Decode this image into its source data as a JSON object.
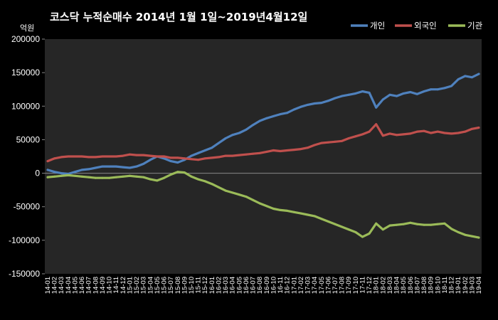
{
  "chart_data": {
    "type": "line",
    "title": "코스닥 누적순매수 2014년 1월 1일~2019년4월12일",
    "unit_label": "억원",
    "ylim": [
      -150000,
      200000
    ],
    "y_ticks": [
      "200000",
      "150000",
      "100000",
      "50000",
      "0",
      "-50000",
      "-100000",
      "-150000"
    ],
    "grid": false,
    "legend_position": "top-right",
    "categories": [
      "14-01",
      "14-02",
      "14-03",
      "14-04",
      "14-05",
      "14-06",
      "14-07",
      "14-08",
      "14-09",
      "14-10",
      "14-11",
      "14-12",
      "15-01",
      "15-02",
      "15-03",
      "15-04",
      "15-05",
      "15-06",
      "15-07",
      "15-08",
      "15-09",
      "15-10",
      "15-11",
      "15-12",
      "16-01",
      "16-02",
      "16-03",
      "16-04",
      "16-05",
      "16-06",
      "16-07",
      "16-08",
      "16-09",
      "16-10",
      "16-11",
      "16-12",
      "17-01",
      "17-02",
      "17-03",
      "17-04",
      "17-05",
      "17-06",
      "17-07",
      "17-08",
      "17-09",
      "17-10",
      "17-11",
      "17-12",
      "18-01",
      "18-02",
      "18-03",
      "18-04",
      "18-05",
      "18-06",
      "18-07",
      "18-08",
      "18-09",
      "18-10",
      "18-11",
      "18-12",
      "19-01",
      "19-02",
      "19-03",
      "19-04"
    ],
    "series": [
      {
        "name": "개인",
        "color": "#4f81bd",
        "values": [
          5000,
          2000,
          0,
          -1000,
          2000,
          5000,
          6000,
          8000,
          10000,
          10000,
          10000,
          9000,
          8000,
          10000,
          14000,
          20000,
          25000,
          22000,
          18000,
          16000,
          20000,
          26000,
          30000,
          34000,
          38000,
          45000,
          52000,
          57000,
          60000,
          65000,
          72000,
          78000,
          82000,
          85000,
          88000,
          90000,
          95000,
          99000,
          102000,
          104000,
          105000,
          108000,
          112000,
          115000,
          117000,
          119000,
          122000,
          120000,
          98000,
          110000,
          117000,
          115000,
          119000,
          121000,
          118000,
          122000,
          125000,
          125000,
          127000,
          130000,
          140000,
          145000,
          143000,
          148000
        ]
      },
      {
        "name": "외국인",
        "color": "#c0504d",
        "values": [
          18000,
          22000,
          24000,
          25000,
          25000,
          25000,
          24000,
          24000,
          25000,
          25000,
          25000,
          26000,
          28000,
          27000,
          27000,
          26000,
          25000,
          25000,
          23000,
          23000,
          22000,
          21000,
          20000,
          22000,
          23000,
          24000,
          26000,
          26000,
          27000,
          28000,
          29000,
          30000,
          32000,
          34000,
          33000,
          34000,
          35000,
          36000,
          38000,
          42000,
          45000,
          46000,
          47000,
          48000,
          52000,
          55000,
          58000,
          62000,
          73000,
          56000,
          59000,
          57000,
          58000,
          59000,
          62000,
          63000,
          60000,
          62000,
          60000,
          59000,
          60000,
          62000,
          66000,
          68000
        ]
      },
      {
        "name": "기관",
        "color": "#9bbb59",
        "values": [
          -6000,
          -5000,
          -4000,
          -3000,
          -4000,
          -5000,
          -6000,
          -7000,
          -7000,
          -7000,
          -6000,
          -5000,
          -4000,
          -5000,
          -6000,
          -9000,
          -11000,
          -7000,
          -2000,
          2000,
          1000,
          -5000,
          -9000,
          -12000,
          -16000,
          -21000,
          -26000,
          -29000,
          -32000,
          -35000,
          -40000,
          -45000,
          -49000,
          -53000,
          -55000,
          -56000,
          -58000,
          -60000,
          -62000,
          -64000,
          -68000,
          -72000,
          -76000,
          -80000,
          -84000,
          -88000,
          -95000,
          -90000,
          -75000,
          -84000,
          -78000,
          -77000,
          -76000,
          -74000,
          -76000,
          -77000,
          -77000,
          -76000,
          -75000,
          -83000,
          -88000,
          -92000,
          -94000,
          -96000
        ]
      }
    ]
  }
}
